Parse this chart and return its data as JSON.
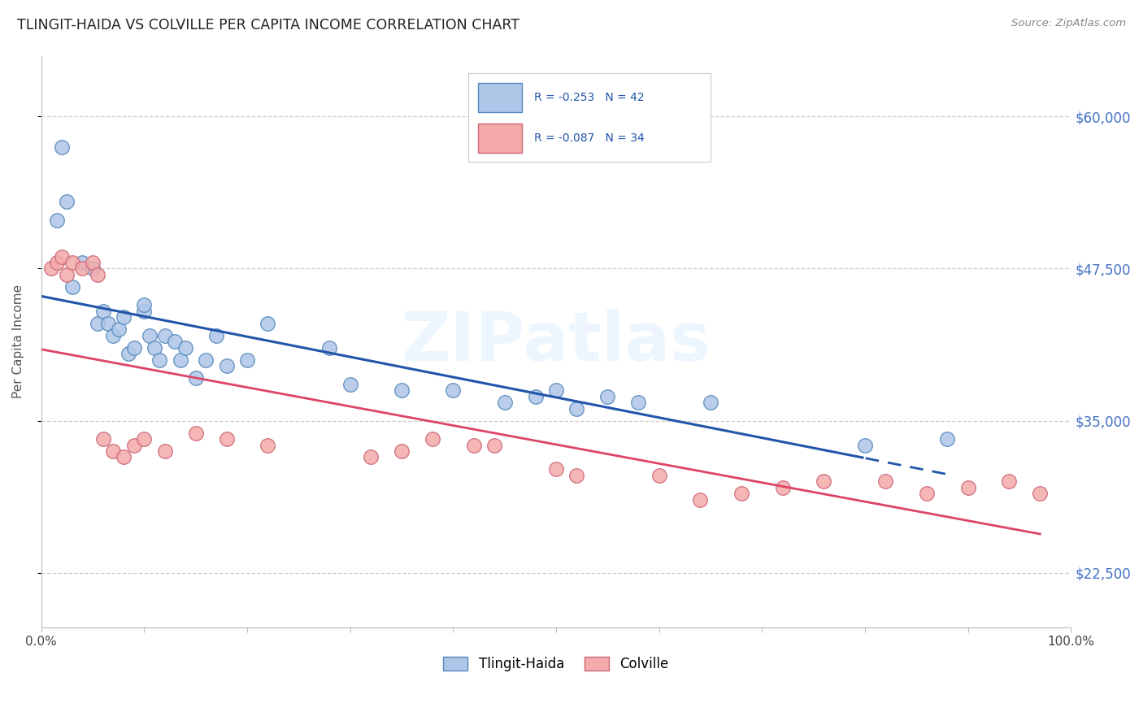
{
  "title": "TLINGIT-HAIDA VS COLVILLE PER CAPITA INCOME CORRELATION CHART",
  "source": "Source: ZipAtlas.com",
  "ylabel": "Per Capita Income",
  "xlim": [
    0,
    1.0
  ],
  "ylim": [
    18000,
    65000
  ],
  "ytick_labels": [
    "$22,500",
    "$35,000",
    "$47,500",
    "$60,000"
  ],
  "ytick_values": [
    22500,
    35000,
    47500,
    60000
  ],
  "legend_text_blue": "R = -0.253   N = 42",
  "legend_text_pink": "R = -0.087   N = 34",
  "legend_label_blue": "Tlingit-Haida",
  "legend_label_pink": "Colville",
  "blue_fill": "#aec6e8",
  "blue_edge": "#5588bb",
  "pink_fill": "#f4aaaa",
  "pink_edge": "#cc6677",
  "blue_line": "#2255aa",
  "pink_line": "#dd4466",
  "watermark": "ZIPatlas",
  "tlingit_x": [
    0.015,
    0.02,
    0.025,
    0.03,
    0.04,
    0.05,
    0.055,
    0.06,
    0.065,
    0.07,
    0.075,
    0.08,
    0.085,
    0.09,
    0.1,
    0.1,
    0.105,
    0.11,
    0.115,
    0.12,
    0.13,
    0.135,
    0.14,
    0.15,
    0.16,
    0.17,
    0.18,
    0.2,
    0.22,
    0.28,
    0.3,
    0.35,
    0.4,
    0.45,
    0.48,
    0.5,
    0.52,
    0.55,
    0.58,
    0.65,
    0.8,
    0.88
  ],
  "tlingit_y": [
    51500,
    57500,
    53000,
    46000,
    48000,
    47500,
    43000,
    44000,
    43000,
    42000,
    42500,
    43500,
    40500,
    41000,
    44000,
    44500,
    42000,
    41000,
    40000,
    42000,
    41500,
    40000,
    41000,
    38500,
    40000,
    42000,
    39500,
    40000,
    43000,
    41000,
    38000,
    37500,
    37500,
    36500,
    37000,
    37500,
    36000,
    37000,
    36500,
    36500,
    33000,
    33500
  ],
  "colville_x": [
    0.01,
    0.015,
    0.02,
    0.025,
    0.03,
    0.04,
    0.05,
    0.055,
    0.06,
    0.07,
    0.08,
    0.09,
    0.1,
    0.12,
    0.15,
    0.18,
    0.22,
    0.32,
    0.35,
    0.38,
    0.42,
    0.44,
    0.5,
    0.52,
    0.6,
    0.64,
    0.68,
    0.72,
    0.76,
    0.82,
    0.86,
    0.9,
    0.94,
    0.97
  ],
  "colville_y": [
    47500,
    48000,
    48500,
    47000,
    48000,
    47500,
    48000,
    47000,
    33500,
    32500,
    32000,
    33000,
    33500,
    32500,
    34000,
    33500,
    33000,
    32000,
    32500,
    33500,
    33000,
    33000,
    31000,
    30500,
    30500,
    28500,
    29000,
    29500,
    30000,
    30000,
    29000,
    29500,
    30000,
    29000
  ]
}
